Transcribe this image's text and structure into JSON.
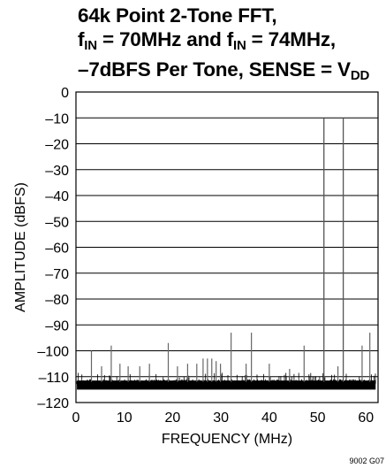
{
  "chart_data": {
    "type": "line",
    "title_lines": [
      {
        "parts": [
          {
            "t": "64k Point 2-Tone FFT,"
          }
        ]
      },
      {
        "parts": [
          {
            "t": "f"
          },
          {
            "t": "IN",
            "sub": true
          },
          {
            "t": " = 70MHz and f"
          },
          {
            "t": "IN",
            "sub": true
          },
          {
            "t": " = 74MHz,"
          }
        ]
      },
      {
        "parts": [
          {
            "t": "–7dBFS Per Tone, SENSE = V"
          },
          {
            "t": "DD",
            "sub": true
          }
        ]
      }
    ],
    "xlabel": "FREQUENCY (MHz)",
    "ylabel": "AMPLITUDE (dBFS)",
    "xlim": [
      0,
      62.5
    ],
    "ylim": [
      -120,
      0
    ],
    "xticks": [
      0,
      10,
      20,
      30,
      40,
      50,
      60
    ],
    "yticks": [
      0,
      -10,
      -20,
      -30,
      -40,
      -50,
      -60,
      -70,
      -80,
      -90,
      -100,
      -110,
      -120
    ],
    "ytick_labels": [
      "0",
      "–10",
      "–20",
      "–30",
      "–40",
      "–50",
      "–60",
      "–70",
      "–80",
      "–90",
      "–100",
      "–110",
      "–120"
    ],
    "grid": true,
    "noise_floor_dbfs": [
      -116,
      -110
    ],
    "series": [
      {
        "x": [
          51.3,
          55.3,
          3.2,
          5.3,
          7.3,
          9.1,
          10.8,
          13.2,
          15.2,
          19.1,
          21.0,
          23.1,
          25.0,
          26.3,
          27.2,
          28.1,
          29.0,
          29.9,
          32.1,
          35.2,
          36.3,
          40.0,
          44.2,
          47.2,
          54.2,
          59.2,
          60.8
        ],
        "y": [
          -10,
          -10,
          -100,
          -106,
          -98,
          -105,
          -106,
          -106,
          -105,
          -97,
          -106,
          -105,
          -105,
          -103,
          -103,
          -103,
          -104,
          -105,
          -93,
          -105,
          -93,
          -105,
          -107,
          -98,
          -106,
          -98,
          -93
        ]
      }
    ]
  },
  "figure_code": "9002 G07"
}
